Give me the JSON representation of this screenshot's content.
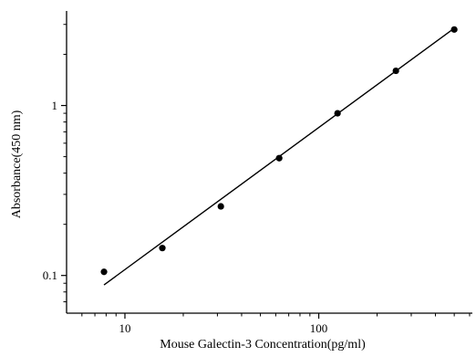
{
  "chart_data": {
    "type": "scatter",
    "title": "",
    "xlabel": "Mouse Galectin-3 Concentration(pg/ml)",
    "ylabel": "Absorbance(450 nm)",
    "x_scale": "log",
    "y_scale": "log",
    "xlim": [
      5,
      620
    ],
    "ylim": [
      0.06,
      3.6
    ],
    "x_ticks": [
      {
        "value": 10,
        "label": "10"
      },
      {
        "value": 100,
        "label": "100"
      }
    ],
    "y_ticks": [
      {
        "value": 0.1,
        "label": "0.1"
      },
      {
        "value": 1,
        "label": "1"
      }
    ],
    "grid": false,
    "legend": "none",
    "points": [
      {
        "x": 7.8,
        "y": 0.105
      },
      {
        "x": 15.6,
        "y": 0.145
      },
      {
        "x": 31.25,
        "y": 0.255
      },
      {
        "x": 62.5,
        "y": 0.49
      },
      {
        "x": 125,
        "y": 0.9
      },
      {
        "x": 250,
        "y": 1.6
      },
      {
        "x": 500,
        "y": 2.8
      }
    ],
    "fit_line": [
      {
        "x": 7.8,
        "y": 0.088
      },
      {
        "x": 500,
        "y": 2.85
      }
    ],
    "colors": {
      "marker": "#000000",
      "line": "#000000",
      "axis": "#000000"
    }
  }
}
